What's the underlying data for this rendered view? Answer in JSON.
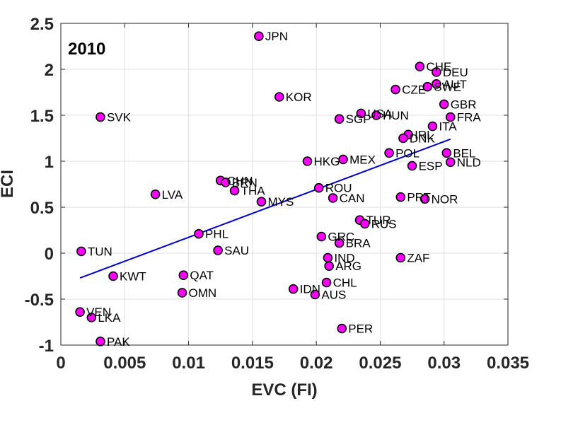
{
  "colors": {
    "point_fill": "#ff00ff",
    "point_stroke": "#000000",
    "fit_line": "#0000cd",
    "grid": "#dfdfdf",
    "axes": "#262626",
    "background": "#ffffff"
  },
  "chart_data": {
    "type": "scatter",
    "title": "2010",
    "xlabel": "EVC (FI)",
    "ylabel": "ECI",
    "xlim": [
      0,
      0.035
    ],
    "ylim": [
      -1,
      2.5
    ],
    "xticks": [
      0,
      0.005,
      0.01,
      0.015,
      0.02,
      0.025,
      0.03,
      0.035
    ],
    "xtick_labels": [
      "0",
      "0.005",
      "0.01",
      "0.015",
      "0.02",
      "0.025",
      "0.03",
      "0.035"
    ],
    "yticks": [
      -1,
      -0.5,
      0,
      0.5,
      1,
      1.5,
      2,
      2.5
    ],
    "ytick_labels": [
      "-1",
      "-0.5",
      "0",
      "0.5",
      "1",
      "1.5",
      "2",
      "2.5"
    ],
    "grid": true,
    "points": [
      {
        "label": "JPN",
        "x": 0.0155,
        "y": 2.36
      },
      {
        "label": "KOR",
        "x": 0.0171,
        "y": 1.7
      },
      {
        "label": "SVK",
        "x": 0.0031,
        "y": 1.48
      },
      {
        "label": "CHE",
        "x": 0.0281,
        "y": 2.03
      },
      {
        "label": "DEU",
        "x": 0.0294,
        "y": 1.97
      },
      {
        "label": "AUT",
        "x": 0.0294,
        "y": 1.84
      },
      {
        "label": "SWE",
        "x": 0.0287,
        "y": 1.81
      },
      {
        "label": "CZE",
        "x": 0.0262,
        "y": 1.78
      },
      {
        "label": "GBR",
        "x": 0.03,
        "y": 1.62
      },
      {
        "label": "FRA",
        "x": 0.0305,
        "y": 1.48
      },
      {
        "label": "USA",
        "x": 0.0235,
        "y": 1.52
      },
      {
        "label": "HUN",
        "x": 0.0247,
        "y": 1.5
      },
      {
        "label": "SGP",
        "x": 0.0218,
        "y": 1.46
      },
      {
        "label": "ITA",
        "x": 0.0291,
        "y": 1.38
      },
      {
        "label": "IRL",
        "x": 0.0272,
        "y": 1.29
      },
      {
        "label": "DNK",
        "x": 0.0268,
        "y": 1.25
      },
      {
        "label": "BEL",
        "x": 0.0302,
        "y": 1.09
      },
      {
        "label": "NLD",
        "x": 0.0305,
        "y": 0.99
      },
      {
        "label": "POL",
        "x": 0.0257,
        "y": 1.09
      },
      {
        "label": "ESP",
        "x": 0.0275,
        "y": 0.95
      },
      {
        "label": "HKG",
        "x": 0.0193,
        "y": 1.0
      },
      {
        "label": "MEX",
        "x": 0.0221,
        "y": 1.02
      },
      {
        "label": "CHN",
        "x": 0.0125,
        "y": 0.79
      },
      {
        "label": "BRN",
        "x": 0.0129,
        "y": 0.77
      },
      {
        "label": "THA",
        "x": 0.0136,
        "y": 0.68
      },
      {
        "label": "LVA",
        "x": 0.0074,
        "y": 0.64
      },
      {
        "label": "MYS",
        "x": 0.0157,
        "y": 0.56
      },
      {
        "label": "ROU",
        "x": 0.0202,
        "y": 0.71
      },
      {
        "label": "CAN",
        "x": 0.0213,
        "y": 0.6
      },
      {
        "label": "PRT",
        "x": 0.0266,
        "y": 0.61
      },
      {
        "label": "NOR",
        "x": 0.0285,
        "y": 0.59
      },
      {
        "label": "TUR",
        "x": 0.0234,
        "y": 0.36
      },
      {
        "label": "RUS",
        "x": 0.0238,
        "y": 0.32
      },
      {
        "label": "PHL",
        "x": 0.0108,
        "y": 0.21
      },
      {
        "label": "GRC",
        "x": 0.0204,
        "y": 0.18
      },
      {
        "label": "BRA",
        "x": 0.0218,
        "y": 0.11
      },
      {
        "label": "TUN",
        "x": 0.0016,
        "y": 0.02
      },
      {
        "label": "SAU",
        "x": 0.0123,
        "y": 0.03
      },
      {
        "label": "IND",
        "x": 0.0209,
        "y": -0.05
      },
      {
        "label": "ZAF",
        "x": 0.0266,
        "y": -0.05
      },
      {
        "label": "ARG",
        "x": 0.021,
        "y": -0.14
      },
      {
        "label": "KWT",
        "x": 0.0041,
        "y": -0.25
      },
      {
        "label": "QAT",
        "x": 0.0096,
        "y": -0.24
      },
      {
        "label": "CHL",
        "x": 0.0208,
        "y": -0.32
      },
      {
        "label": "IDN",
        "x": 0.0182,
        "y": -0.39
      },
      {
        "label": "OMN",
        "x": 0.0095,
        "y": -0.43
      },
      {
        "label": "AUS",
        "x": 0.0199,
        "y": -0.45
      },
      {
        "label": "VEN",
        "x": 0.0015,
        "y": -0.64
      },
      {
        "label": "LKA",
        "x": 0.0024,
        "y": -0.7
      },
      {
        "label": "PER",
        "x": 0.022,
        "y": -0.82
      },
      {
        "label": "PAK",
        "x": 0.0031,
        "y": -0.96
      }
    ],
    "fit_line": {
      "x": [
        0.0015,
        0.0305
      ],
      "y": [
        -0.27,
        1.24
      ]
    }
  }
}
